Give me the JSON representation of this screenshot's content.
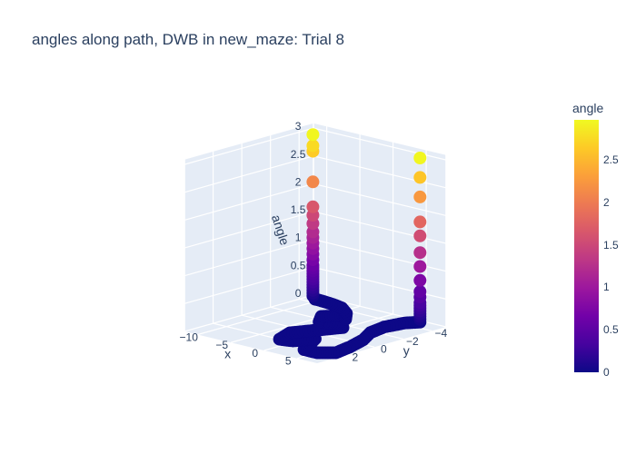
{
  "chart_data": {
    "type": "scatter",
    "title": "angles along path, DWB in new_maze: Trial 8",
    "scene": {
      "xaxis": {
        "title": "x",
        "range": [
          -12,
          8
        ],
        "ticks": [
          "-10",
          "-5",
          "0",
          "5"
        ]
      },
      "yaxis": {
        "title": "y",
        "range": [
          -5,
          4
        ],
        "ticks": [
          "-4",
          "-2",
          "0",
          "2"
        ]
      },
      "zaxis": {
        "title": "angle",
        "range": [
          0,
          3.1
        ],
        "ticks": [
          "0",
          "0.5",
          "1",
          "1.5",
          "2",
          "2.5",
          "3"
        ]
      },
      "grid": true,
      "background": "#e5ecf6"
    },
    "path": [
      {
        "x": 4.5,
        "y": -4.8
      },
      {
        "x": 3.5,
        "y": -4.2
      },
      {
        "x": 3.0,
        "y": -3.0
      },
      {
        "x": 3.5,
        "y": -1.8
      },
      {
        "x": 5.0,
        "y": -0.6
      },
      {
        "x": 6.0,
        "y": 0.8
      },
      {
        "x": 6.5,
        "y": 2.0
      },
      {
        "x": 5.0,
        "y": 2.6
      },
      {
        "x": 3.0,
        "y": 2.6
      },
      {
        "x": 1.8,
        "y": 1.6
      },
      {
        "x": 0.8,
        "y": 0.8
      },
      {
        "x": -0.4,
        "y": 1.8
      },
      {
        "x": -2.0,
        "y": 2.0
      },
      {
        "x": -3.0,
        "y": 0.8
      },
      {
        "x": -1.6,
        "y": -0.4
      },
      {
        "x": -0.2,
        "y": -1.6
      },
      {
        "x": -1.6,
        "y": -2.0
      },
      {
        "x": -3.8,
        "y": -1.6
      },
      {
        "x": -5.2,
        "y": -2.4
      },
      {
        "x": -3.6,
        "y": -3.2
      },
      {
        "x": -2.4,
        "y": -2.8
      },
      {
        "x": -4.0,
        "y": -3.6
      },
      {
        "x": -6.0,
        "y": -4.2
      },
      {
        "x": -8.0,
        "y": -4.4
      },
      {
        "x": -10.0,
        "y": -4.5
      },
      {
        "x": -11.0,
        "y": -4.5
      }
    ],
    "start_spike": {
      "x": 4.5,
      "y": -4.8,
      "angles": [
        0.05,
        0.1,
        0.15,
        0.2,
        0.25,
        0.3,
        0.35,
        0.45,
        0.55,
        0.75,
        1.0,
        1.25,
        1.55,
        1.8,
        2.25,
        2.6,
        2.95
      ]
    },
    "end_spike": {
      "x": -11.0,
      "y": -4.5,
      "angles": [
        0.05,
        0.1,
        0.15,
        0.2,
        0.25,
        0.3,
        0.35,
        0.4,
        0.45,
        0.5,
        0.55,
        0.6,
        0.7,
        0.8,
        0.9,
        1.0,
        1.1,
        1.2,
        1.35,
        1.5,
        1.65,
        2.1,
        2.65,
        2.75,
        2.95
      ]
    },
    "colorscale": [
      "#0d0887",
      "#46039f",
      "#7201a8",
      "#9c179e",
      "#bd3786",
      "#d8576b",
      "#ed7953",
      "#fb9f3a",
      "#fdca26",
      "#f0f921"
    ],
    "colorbar": {
      "title": "angle",
      "ticks": [
        "0",
        "0.5",
        "1",
        "1.5",
        "2",
        "2.5"
      ],
      "tick_values": [
        0,
        0.5,
        1,
        1.5,
        2,
        2.5
      ],
      "range": [
        0,
        2.97
      ]
    }
  }
}
